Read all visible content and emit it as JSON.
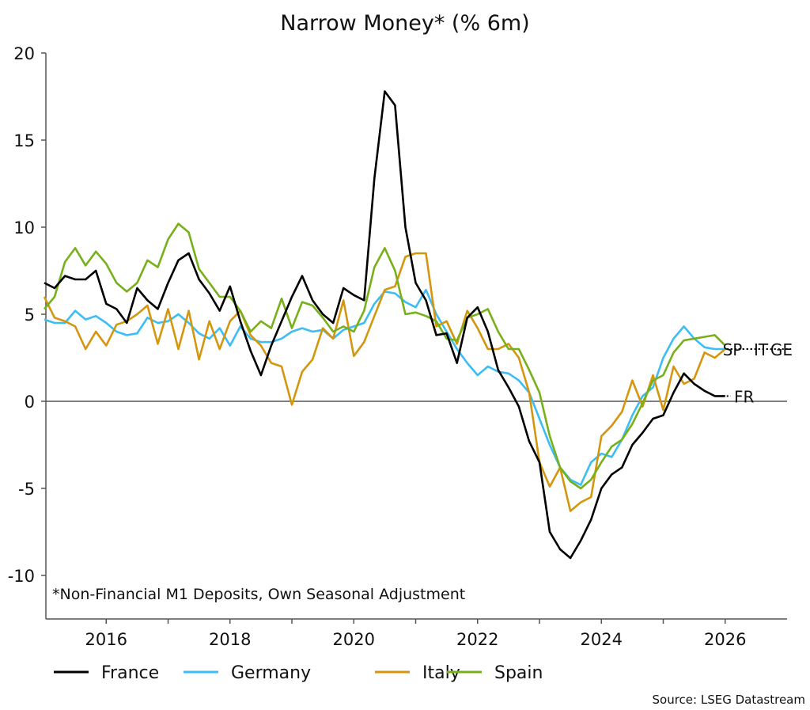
{
  "chart_data": {
    "type": "line",
    "title": "Narrow Money* (% 6m)",
    "note": "*Non-Financial M1 Deposits, Own Seasonal Adjustment",
    "source": "Source: LSEG Datastream",
    "xlabel": "",
    "ylabel": "",
    "xlim": [
      2015,
      2027
    ],
    "ylim": [
      -12.5,
      20
    ],
    "x_ticks": [
      "2016",
      "2018",
      "2020",
      "2022",
      "2024",
      "2026"
    ],
    "y_ticks": [
      "20",
      "15",
      "10",
      "5",
      "0",
      "-5",
      "-10"
    ],
    "grid": false,
    "zero_line": true,
    "legend_placement": "bottom",
    "x": [
      "2015-01",
      "2015-03",
      "2015-05",
      "2015-07",
      "2015-09",
      "2015-11",
      "2016-01",
      "2016-03",
      "2016-05",
      "2016-07",
      "2016-09",
      "2016-11",
      "2017-01",
      "2017-03",
      "2017-05",
      "2017-07",
      "2017-09",
      "2017-11",
      "2018-01",
      "2018-03",
      "2018-05",
      "2018-07",
      "2018-09",
      "2018-11",
      "2019-01",
      "2019-03",
      "2019-05",
      "2019-07",
      "2019-09",
      "2019-11",
      "2020-01",
      "2020-03",
      "2020-05",
      "2020-07",
      "2020-09",
      "2020-11",
      "2021-01",
      "2021-03",
      "2021-05",
      "2021-07",
      "2021-09",
      "2021-11",
      "2022-01",
      "2022-03",
      "2022-05",
      "2022-07",
      "2022-09",
      "2022-11",
      "2023-01",
      "2023-03",
      "2023-05",
      "2023-07",
      "2023-09",
      "2023-11",
      "2024-01",
      "2024-03",
      "2024-05",
      "2024-07",
      "2024-09",
      "2024-11",
      "2025-01",
      "2025-03",
      "2025-05",
      "2025-07",
      "2025-09",
      "2025-11",
      "2026-01"
    ],
    "series": [
      {
        "name": "France",
        "end_label": "FR",
        "color": "#000000",
        "values": [
          6.8,
          6.5,
          7.2,
          7.0,
          7.0,
          7.5,
          5.6,
          5.3,
          4.5,
          6.5,
          5.8,
          5.3,
          6.8,
          8.1,
          8.5,
          7.0,
          6.2,
          5.2,
          6.6,
          4.6,
          2.9,
          1.5,
          3.2,
          4.6,
          6.0,
          7.2,
          5.8,
          5.0,
          4.5,
          6.5,
          6.1,
          5.8,
          12.8,
          17.8,
          17.0,
          10.0,
          6.8,
          5.8,
          3.8,
          3.9,
          2.2,
          4.8,
          5.4,
          4.0,
          1.8,
          0.8,
          -0.3,
          -2.3,
          -3.5,
          -7.5,
          -8.5,
          -9.0,
          -8.0,
          -6.8,
          -5.0,
          -4.2,
          -3.8,
          -2.5,
          -1.8,
          -1.0,
          -0.8,
          0.5,
          1.6,
          1.0,
          0.6,
          0.3,
          0.3
        ]
      },
      {
        "name": "Germany",
        "end_label": "GE",
        "color": "#3dbdf5",
        "values": [
          4.7,
          4.5,
          4.5,
          5.2,
          4.7,
          4.9,
          4.5,
          4.0,
          3.8,
          3.9,
          4.8,
          4.5,
          4.6,
          5.0,
          4.5,
          3.9,
          3.6,
          4.2,
          3.2,
          4.3,
          3.6,
          3.4,
          3.4,
          3.6,
          4.0,
          4.2,
          4.0,
          4.1,
          3.6,
          4.1,
          4.3,
          4.5,
          5.6,
          6.3,
          6.2,
          5.7,
          5.4,
          6.4,
          5.0,
          4.0,
          3.0,
          2.2,
          1.5,
          2.0,
          1.7,
          1.6,
          1.2,
          0.5,
          -1.0,
          -2.5,
          -3.8,
          -4.5,
          -4.8,
          -3.5,
          -3.0,
          -3.2,
          -2.2,
          -0.8,
          0.3,
          0.8,
          2.5,
          3.6,
          4.3,
          3.6,
          3.1,
          3.0,
          3.0
        ]
      },
      {
        "name": "Italy",
        "end_label": "IT",
        "color": "#d4960e",
        "values": [
          6.0,
          4.8,
          4.6,
          4.3,
          3.0,
          4.0,
          3.2,
          4.4,
          4.6,
          5.0,
          5.5,
          3.3,
          5.3,
          3.0,
          5.2,
          2.4,
          4.6,
          3.0,
          4.6,
          5.2,
          3.8,
          3.2,
          2.2,
          2.0,
          -0.2,
          1.7,
          2.4,
          4.2,
          3.6,
          5.8,
          2.6,
          3.4,
          4.9,
          6.4,
          6.6,
          8.3,
          8.5,
          8.5,
          4.3,
          4.6,
          3.3,
          5.2,
          4.2,
          3.0,
          3.0,
          3.3,
          2.5,
          0.5,
          -3.5,
          -4.9,
          -3.8,
          -6.3,
          -5.8,
          -5.5,
          -2.0,
          -1.4,
          -0.6,
          1.2,
          -0.3,
          1.5,
          -0.5,
          2.0,
          1.0,
          1.3,
          2.8,
          2.5,
          3.0
        ]
      },
      {
        "name": "Spain",
        "end_label": "SP",
        "color": "#77b01a",
        "values": [
          5.3,
          6.0,
          8.0,
          8.8,
          7.8,
          8.6,
          7.9,
          6.8,
          6.3,
          6.8,
          8.1,
          7.7,
          9.3,
          10.2,
          9.7,
          7.6,
          6.8,
          6.0,
          6.0,
          5.2,
          4.0,
          4.6,
          4.2,
          5.9,
          4.2,
          5.7,
          5.5,
          4.8,
          4.0,
          4.3,
          4.0,
          5.2,
          7.7,
          8.8,
          7.5,
          5.0,
          5.1,
          4.9,
          4.6,
          3.6,
          3.5,
          4.8,
          5.0,
          5.3,
          4.0,
          3.0,
          3.0,
          1.8,
          0.5,
          -2.0,
          -3.8,
          -4.6,
          -5.0,
          -4.5,
          -3.5,
          -2.6,
          -2.2,
          -1.3,
          -0.1,
          1.2,
          1.5,
          2.8,
          3.5,
          3.6,
          3.7,
          3.8,
          3.2
        ]
      }
    ]
  }
}
